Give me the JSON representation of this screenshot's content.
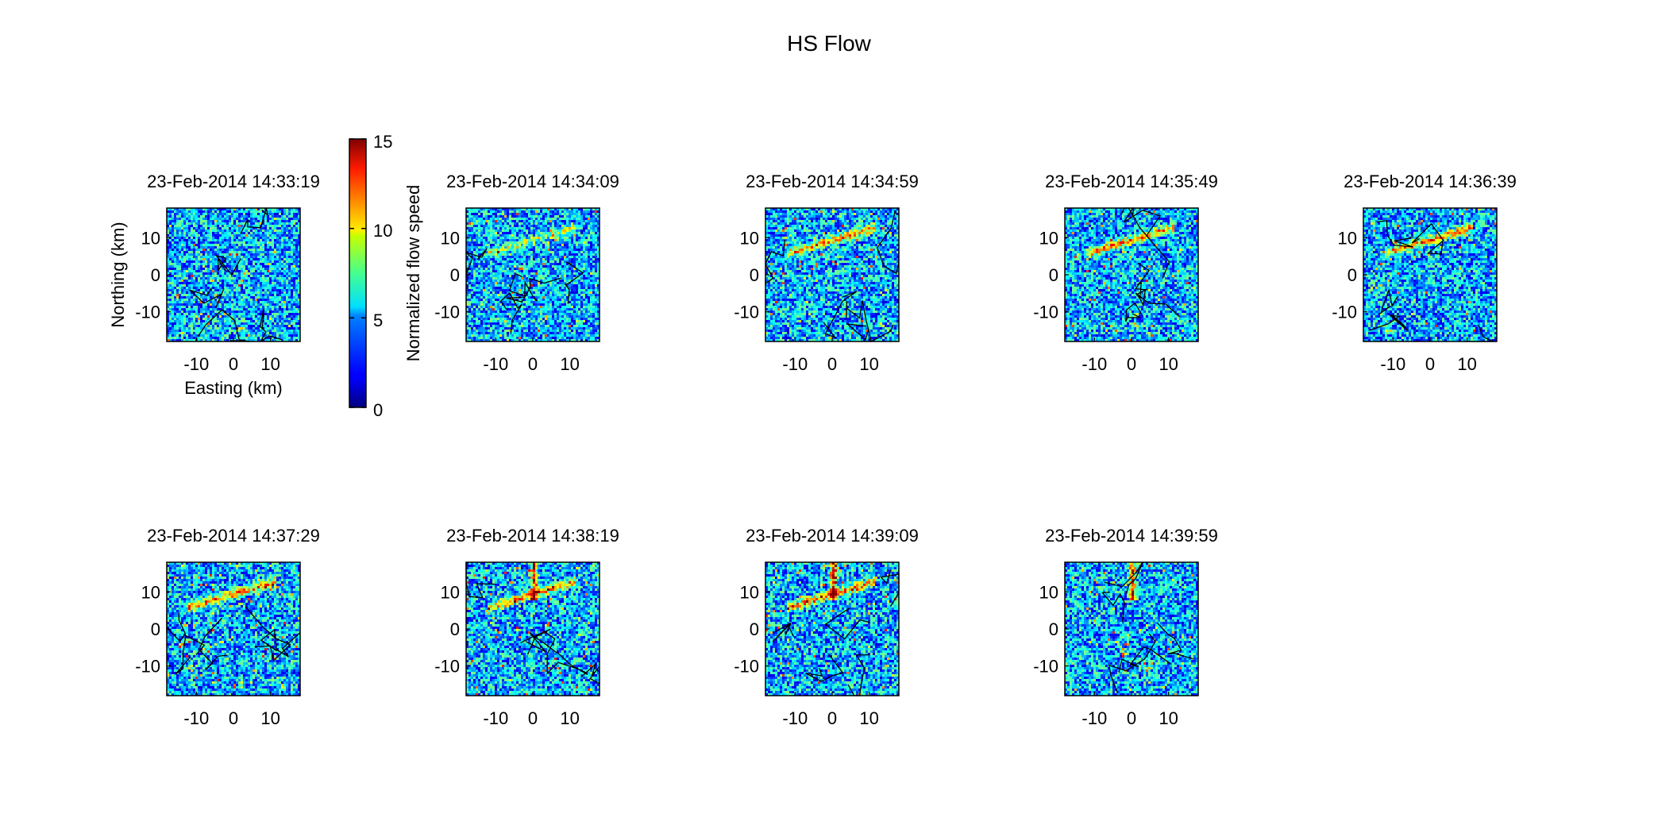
{
  "figure": {
    "title": "HS Flow",
    "colorbar": {
      "label": "Normalized flow speed",
      "min": 0,
      "max": 15,
      "ticks": [
        "0",
        "5",
        "10",
        "15"
      ],
      "colormap": "jet"
    },
    "axes_labels": {
      "xlabel": "Easting (km)",
      "ylabel": "Northing (km)"
    }
  },
  "chart_data": {
    "type": "heatmap",
    "title": "HS Flow",
    "colorbar_label": "Normalized flow speed",
    "color_range": [
      0,
      15
    ],
    "xlim": [
      -18,
      18
    ],
    "ylim": [
      -18,
      18
    ],
    "x_ticks": [
      "-10",
      "0",
      "10"
    ],
    "y_ticks": [
      "10",
      "0",
      "-10"
    ],
    "panels": [
      {
        "timestamp": "23-Feb-2014 14:33:19",
        "feature": "none"
      },
      {
        "timestamp": "23-Feb-2014 14:34:09",
        "feature": "weak-band"
      },
      {
        "timestamp": "23-Feb-2014 14:34:59",
        "feature": "band"
      },
      {
        "timestamp": "23-Feb-2014 14:35:49",
        "feature": "band"
      },
      {
        "timestamp": "23-Feb-2014 14:36:39",
        "feature": "band"
      },
      {
        "timestamp": "23-Feb-2014 14:37:29",
        "feature": "band"
      },
      {
        "timestamp": "23-Feb-2014 14:38:19",
        "feature": "band-column"
      },
      {
        "timestamp": "23-Feb-2014 14:39:09",
        "feature": "band-column"
      },
      {
        "timestamp": "23-Feb-2014 14:39:59",
        "feature": "column"
      }
    ]
  }
}
